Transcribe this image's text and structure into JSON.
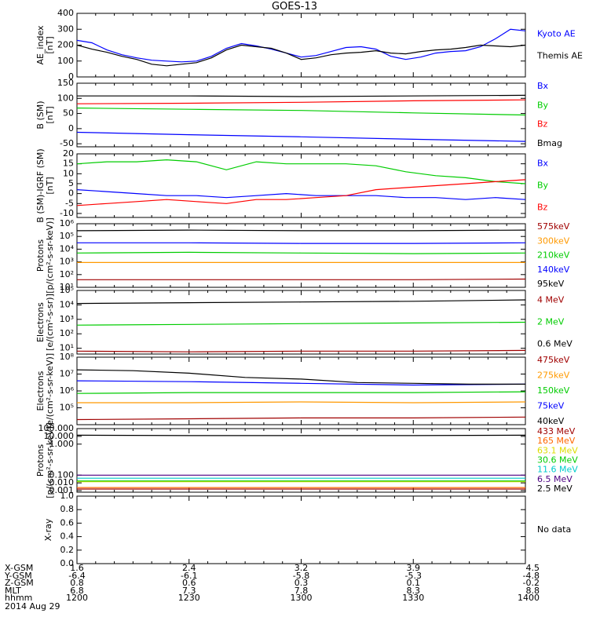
{
  "title": "GOES-13",
  "date_label": "2014 Aug 29",
  "chart_data": [
    {
      "type": "line",
      "ylabel": [
        "AE_index",
        "[nT]"
      ],
      "ylim": [
        0,
        400
      ],
      "yticks": [
        [
          "400",
          400
        ],
        [
          "300",
          300
        ],
        [
          "200",
          200
        ],
        [
          "100",
          100
        ],
        [
          "0",
          0
        ]
      ],
      "series": [
        {
          "name": "Kyoto AE",
          "color": "#0000ff",
          "x": [
            0,
            4,
            8,
            12,
            16,
            20,
            24,
            28,
            32,
            36,
            40,
            44,
            48,
            52,
            56,
            60,
            64,
            68,
            72,
            76,
            80,
            84,
            88,
            92,
            96,
            100,
            104,
            108,
            112,
            116,
            120
          ],
          "y": [
            230,
            215,
            170,
            140,
            120,
            105,
            100,
            95,
            100,
            130,
            180,
            210,
            195,
            175,
            150,
            125,
            135,
            160,
            185,
            190,
            175,
            130,
            110,
            125,
            150,
            160,
            165,
            190,
            240,
            300,
            290
          ]
        },
        {
          "name": "Themis AE",
          "color": "#000000",
          "x": [
            0,
            4,
            8,
            12,
            16,
            20,
            24,
            28,
            32,
            36,
            40,
            44,
            48,
            52,
            56,
            60,
            64,
            68,
            72,
            76,
            80,
            84,
            88,
            92,
            96,
            100,
            104,
            108,
            112,
            116,
            120
          ],
          "y": [
            200,
            175,
            155,
            130,
            110,
            80,
            70,
            80,
            90,
            120,
            170,
            200,
            190,
            180,
            150,
            110,
            120,
            140,
            150,
            155,
            165,
            150,
            145,
            160,
            170,
            175,
            185,
            200,
            195,
            190,
            200
          ]
        }
      ]
    },
    {
      "type": "line",
      "ylabel": [
        "B (SM)",
        "[nT]"
      ],
      "ylim": [
        -60,
        150
      ],
      "yticks": [
        [
          "150",
          150
        ],
        [
          "100",
          100
        ],
        [
          "50",
          50
        ],
        [
          "0",
          0
        ],
        [
          "-50",
          -50
        ]
      ],
      "series": [
        {
          "name": "Bx",
          "color": "#0000ff",
          "x": [
            0,
            30,
            60,
            90,
            120
          ],
          "y": [
            -12,
            -20,
            -27,
            -35,
            -42
          ]
        },
        {
          "name": "By",
          "color": "#00cc00",
          "x": [
            0,
            30,
            60,
            90,
            120
          ],
          "y": [
            68,
            64,
            60,
            52,
            45
          ]
        },
        {
          "name": "Bz",
          "color": "#ff0000",
          "x": [
            0,
            30,
            60,
            90,
            120
          ],
          "y": [
            82,
            84,
            87,
            92,
            95
          ]
        },
        {
          "name": "Bmag",
          "color": "#000000",
          "x": [
            0,
            30,
            60,
            90,
            120
          ],
          "y": [
            108,
            108,
            106,
            108,
            110
          ]
        }
      ]
    },
    {
      "type": "line",
      "ylabel": [
        "B (SM)-IGRF (SM)",
        "[nT]"
      ],
      "ylim": [
        -12,
        20
      ],
      "yticks": [
        [
          "20",
          20
        ],
        [
          "15",
          15
        ],
        [
          "10",
          10
        ],
        [
          "5",
          5
        ],
        [
          "0",
          0
        ],
        [
          "-5",
          -5
        ],
        [
          "-10",
          -10
        ]
      ],
      "series": [
        {
          "name": "Bx",
          "color": "#0000ff",
          "x": [
            0,
            8,
            16,
            24,
            32,
            40,
            48,
            56,
            64,
            72,
            80,
            88,
            96,
            104,
            112,
            120
          ],
          "y": [
            2,
            1,
            0,
            -1,
            -1,
            -2,
            -1,
            0,
            -1,
            -1,
            -1,
            -2,
            -2,
            -3,
            -2,
            -3
          ]
        },
        {
          "name": "By",
          "color": "#00cc00",
          "x": [
            0,
            8,
            16,
            24,
            32,
            40,
            48,
            56,
            64,
            72,
            80,
            88,
            96,
            104,
            112,
            120
          ],
          "y": [
            15,
            16,
            16,
            17,
            16,
            12,
            16,
            15,
            15,
            15,
            14,
            11,
            9,
            8,
            6,
            5
          ]
        },
        {
          "name": "Bz",
          "color": "#ff0000",
          "x": [
            0,
            8,
            16,
            24,
            32,
            40,
            48,
            56,
            64,
            72,
            80,
            88,
            96,
            104,
            112,
            120
          ],
          "y": [
            -6,
            -5,
            -4,
            -3,
            -4,
            -5,
            -3,
            -3,
            -2,
            -1,
            2,
            3,
            4,
            5,
            6,
            7
          ]
        }
      ]
    },
    {
      "type": "line",
      "log": true,
      "ylabel": [
        "Protons",
        "[p/(cm²-s-sr-keV)]"
      ],
      "ylim": [
        1,
        6
      ],
      "yticks": [
        [
          "10⁶",
          6
        ],
        [
          "10⁵",
          5
        ],
        [
          "10⁴",
          4
        ],
        [
          "10³",
          3
        ],
        [
          "10²",
          2
        ],
        [
          "10¹",
          1
        ]
      ],
      "series": [
        {
          "name": "575keV",
          "color": "#a00000",
          "x": [
            0,
            30,
            60,
            90,
            120
          ],
          "y": [
            1.6,
            1.6,
            1.6,
            1.6,
            1.65
          ]
        },
        {
          "name": "300keV",
          "color": "#ff9900",
          "x": [
            0,
            30,
            60,
            90,
            120
          ],
          "y": [
            2.95,
            2.95,
            2.95,
            2.95,
            2.95
          ]
        },
        {
          "name": "210keV",
          "color": "#00cc00",
          "x": [
            0,
            30,
            60,
            90,
            120
          ],
          "y": [
            3.7,
            3.75,
            3.7,
            3.65,
            3.7
          ]
        },
        {
          "name": "140keV",
          "color": "#0000ff",
          "x": [
            0,
            30,
            60,
            90,
            120
          ],
          "y": [
            4.5,
            4.5,
            4.45,
            4.45,
            4.5
          ]
        },
        {
          "name": "95keV",
          "color": "#000000",
          "x": [
            0,
            30,
            60,
            90,
            120
          ],
          "y": [
            5.45,
            5.5,
            5.45,
            5.45,
            5.5
          ]
        }
      ]
    },
    {
      "type": "line",
      "log": true,
      "ylabel": [
        "Electrons",
        "[e/(cm²-s-sr)]"
      ],
      "ylim": [
        0.6,
        5
      ],
      "yticks": [
        [
          "10⁵",
          5
        ],
        [
          "10⁴",
          4
        ],
        [
          "10³",
          3
        ],
        [
          "10²",
          2
        ],
        [
          "10¹",
          1
        ]
      ],
      "series": [
        {
          "name": "4 MeV",
          "color": "#a00000",
          "x": [
            0,
            30,
            60,
            90,
            120
          ],
          "y": [
            0.8,
            0.75,
            0.8,
            0.8,
            0.85
          ]
        },
        {
          "name": "2 MeV",
          "color": "#00cc00",
          "x": [
            0,
            30,
            60,
            90,
            120
          ],
          "y": [
            2.6,
            2.65,
            2.7,
            2.75,
            2.8
          ]
        },
        {
          "name": "0.6 MeV",
          "color": "#000000",
          "x": [
            0,
            30,
            60,
            90,
            120
          ],
          "y": [
            4.1,
            4.15,
            4.2,
            4.25,
            4.35
          ]
        }
      ]
    },
    {
      "type": "line",
      "log": true,
      "ylabel": [
        "Electrons",
        "[e/(cm²-s-sr-keV)]"
      ],
      "ylim": [
        4,
        8
      ],
      "yticks": [
        [
          "10⁸",
          8
        ],
        [
          "10⁷",
          7
        ],
        [
          "10⁶",
          6
        ],
        [
          "10⁵",
          5
        ]
      ],
      "series": [
        {
          "name": "475keV",
          "color": "#a00000",
          "x": [
            0,
            30,
            60,
            90,
            120
          ],
          "y": [
            4.3,
            4.35,
            4.4,
            4.4,
            4.45
          ]
        },
        {
          "name": "275keV",
          "color": "#ff9900",
          "x": [
            0,
            30,
            60,
            90,
            120
          ],
          "y": [
            5.3,
            5.3,
            5.35,
            5.3,
            5.35
          ]
        },
        {
          "name": "150keV",
          "color": "#00cc00",
          "x": [
            0,
            30,
            60,
            90,
            120
          ],
          "y": [
            5.85,
            5.9,
            5.9,
            5.9,
            5.95
          ]
        },
        {
          "name": "75keV",
          "color": "#0000ff",
          "x": [
            0,
            30,
            60,
            90,
            120
          ],
          "y": [
            6.6,
            6.55,
            6.45,
            6.35,
            6.4
          ]
        },
        {
          "name": "40keV",
          "color": "#000000",
          "x": [
            0,
            15,
            30,
            45,
            60,
            75,
            90,
            105,
            120
          ],
          "y": [
            7.25,
            7.2,
            7.05,
            6.8,
            6.7,
            6.5,
            6.45,
            6.4,
            6.4
          ]
        }
      ]
    },
    {
      "type": "line",
      "log": true,
      "ylabel": [
        "Protons",
        "[p/(cm²-s-sr-keV)]"
      ],
      "ylim": [
        -3.2,
        5
      ],
      "yticks": [
        [
          "100.000",
          5
        ],
        [
          "10.000",
          4
        ],
        [
          "1.000",
          3
        ],
        [
          "0.100",
          -1
        ],
        [
          "0.010",
          -2
        ],
        [
          "0.001",
          -3
        ]
      ],
      "series": [
        {
          "name": "433 MeV",
          "color": "#a00000",
          "x": [
            0,
            30,
            60,
            90,
            120
          ],
          "y": [
            -2.8,
            -2.8,
            -2.8,
            -2.8,
            -2.8
          ]
        },
        {
          "name": "165 MeV",
          "color": "#ff6600",
          "x": [
            0,
            30,
            60,
            90,
            120
          ],
          "y": [
            -2.6,
            -2.6,
            -2.6,
            -2.6,
            -2.6
          ]
        },
        {
          "name": "63.1 MeV",
          "color": "#dddd00",
          "x": [
            0,
            30,
            60,
            90,
            120
          ],
          "y": [
            -1.85,
            -1.85,
            -1.85,
            -1.85,
            -1.85
          ]
        },
        {
          "name": "30.6 MeV",
          "color": "#00cc00",
          "x": [
            0,
            30,
            60,
            90,
            120
          ],
          "y": [
            -1.75,
            -1.75,
            -1.75,
            -1.75,
            -1.75
          ]
        },
        {
          "name": "11.6 MeV",
          "color": "#00cccc",
          "x": [
            0,
            30,
            60,
            90,
            120
          ],
          "y": [
            -1.4,
            -1.4,
            -1.4,
            -1.4,
            -1.4
          ]
        },
        {
          "name": "6.5 MeV",
          "color": "#4b0082",
          "x": [
            0,
            30,
            60,
            90,
            120
          ],
          "y": [
            -1,
            -1,
            -1,
            -1,
            -1
          ]
        },
        {
          "name": "2.5 MeV",
          "color": "#000000",
          "x": [
            0,
            30,
            60,
            90,
            120
          ],
          "y": [
            4.15,
            4.1,
            4.1,
            4.1,
            4.15
          ]
        }
      ]
    },
    {
      "type": "line",
      "ylabel": [
        "X-ray"
      ],
      "ylim": [
        0,
        1
      ],
      "yticks": [
        [
          "1.0",
          1
        ],
        [
          "0.8",
          0.8
        ],
        [
          "0.6",
          0.6
        ],
        [
          "0.4",
          0.4
        ],
        [
          "0.2",
          0.2
        ],
        [
          "0.0",
          0
        ]
      ],
      "series": [],
      "annotation": "No data"
    }
  ],
  "ephemeris": {
    "row_labels": [
      "X-GSM",
      "Y-GSM",
      "Z-GSM",
      "MLT",
      "hhmm"
    ],
    "columns": [
      {
        "x": 0,
        "values": [
          "1.6",
          "-6.4",
          "0.8",
          "6.8",
          "1200"
        ]
      },
      {
        "x": 30,
        "values": [
          "2.4",
          "-6.1",
          "0.6",
          "7.3",
          "1230"
        ]
      },
      {
        "x": 60,
        "values": [
          "3.2",
          "-5.8",
          "0.3",
          "7.8",
          "1300"
        ]
      },
      {
        "x": 90,
        "values": [
          "3.9",
          "-5.3",
          "0.1",
          "8.3",
          "1330"
        ]
      },
      {
        "x": 120,
        "values": [
          "4.5",
          "-4.8",
          "-0.2",
          "8.8",
          "1400"
        ]
      }
    ]
  }
}
